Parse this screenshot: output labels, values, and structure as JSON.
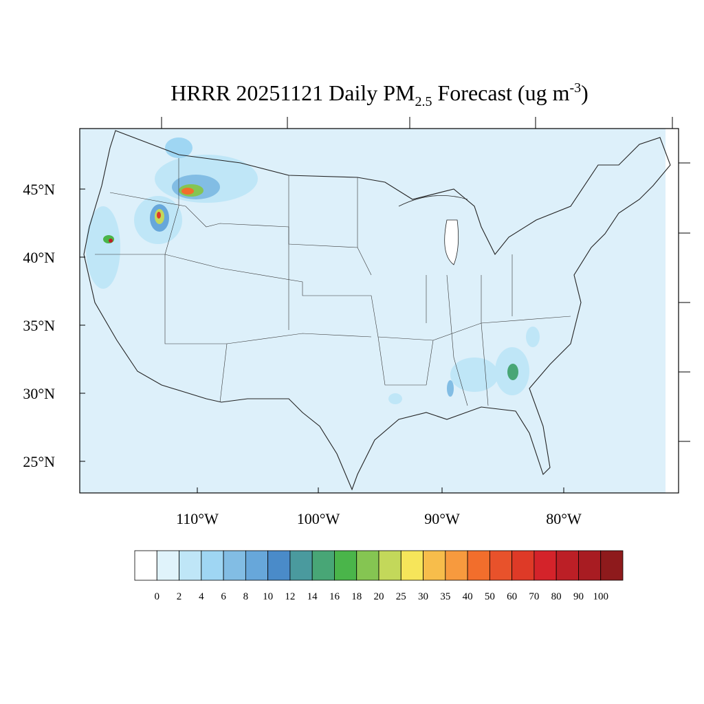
{
  "title": {
    "text": "HRRR 20251121 Daily PM",
    "subscript": "2.5",
    "middle": " Forecast (ug m",
    "superscript": "-3",
    "end": ")"
  },
  "lat_labels": [
    "45°N",
    "40°N",
    "35°N",
    "30°N",
    "25°N"
  ],
  "lon_labels": [
    "110°W",
    "100°W",
    "90°W",
    "80°W"
  ],
  "colorbar": {
    "labels": [
      0,
      2,
      4,
      6,
      8,
      10,
      12,
      14,
      16,
      18,
      20,
      25,
      30,
      35,
      40,
      50,
      60,
      70,
      80,
      90,
      100
    ],
    "colors": [
      "#ffffff",
      "#e0f3fb",
      "#bfe6f7",
      "#9fd6f3",
      "#82bde4",
      "#67a7da",
      "#4a8bc9",
      "#4a9a9e",
      "#48a676",
      "#4ab54a",
      "#85c552",
      "#c3d85a",
      "#f6e55a",
      "#f7bd4b",
      "#f79a3e",
      "#f26e2c",
      "#e8522b",
      "#de3a27",
      "#d4232a",
      "#bc1f26",
      "#a81c22",
      "#8e1a1c"
    ]
  }
}
